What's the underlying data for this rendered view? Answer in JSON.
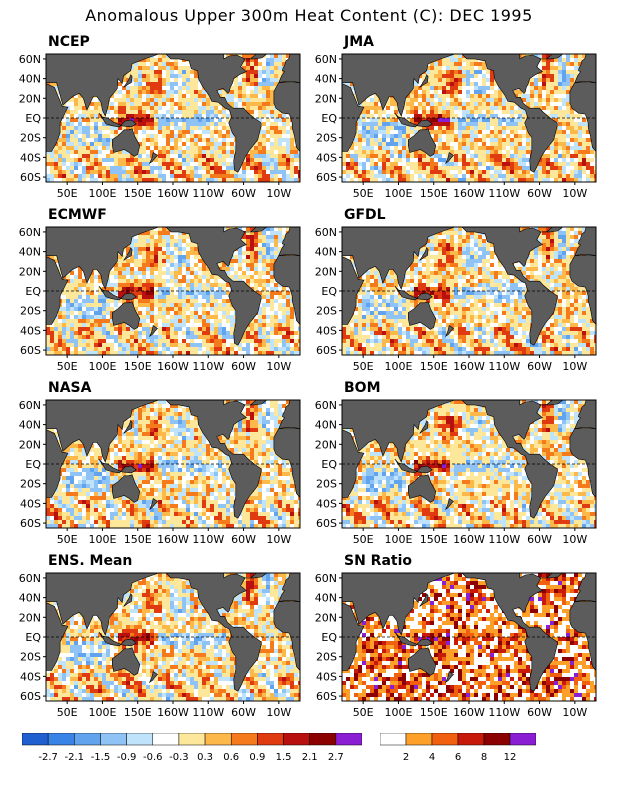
{
  "title": "Anomalous Upper 300m Heat Content (C): DEC 1995",
  "lat_labels": [
    "60N",
    "40N",
    "20N",
    "EQ",
    "20S",
    "40S",
    "60S"
  ],
  "lon_labels": [
    "50E",
    "100E",
    "150E",
    "160W",
    "110W",
    "60W",
    "10W"
  ],
  "panels": [
    {
      "name": "NCEP",
      "seed": 11
    },
    {
      "name": "JMA",
      "seed": 23
    },
    {
      "name": "ECMWF",
      "seed": 37
    },
    {
      "name": "GFDL",
      "seed": 41
    },
    {
      "name": "NASA",
      "seed": 53
    },
    {
      "name": "BOM",
      "seed": 67
    },
    {
      "name": "ENS. Mean",
      "seed": 79
    },
    {
      "name": "SN Ratio",
      "seed": 97,
      "type": "snr"
    }
  ],
  "legend_anomaly": {
    "colors": [
      "#1f5fcf",
      "#3a83e6",
      "#62a3ee",
      "#8fc3f5",
      "#bfe3fb",
      "#ffffff",
      "#fde79a",
      "#fdb84a",
      "#f57a1c",
      "#e03a10",
      "#b80f0f",
      "#8b0000",
      "#8a1ed2"
    ],
    "labels": [
      "-2.7",
      "-2.1",
      "-1.5",
      "-0.9",
      "-0.6",
      "-0.3",
      "0.3",
      "0.6",
      "0.9",
      "1.5",
      "2.1",
      "2.7"
    ]
  },
  "legend_snr": {
    "colors": [
      "#ffffff",
      "#fca02a",
      "#f0600f",
      "#c81a0a",
      "#8b0000",
      "#8a1ed2"
    ],
    "labels": [
      "2",
      "4",
      "6",
      "8",
      "12"
    ]
  },
  "land_color": "#5c5c5c"
}
